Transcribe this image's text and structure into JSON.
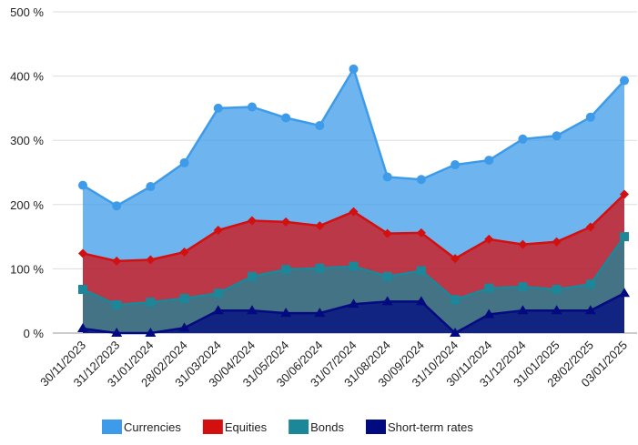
{
  "chart_data": {
    "type": "area",
    "categories": [
      "30/11/2023",
      "31/12/2023",
      "31/01/2024",
      "28/02/2024",
      "31/03/2024",
      "30/04/2024",
      "31/05/2024",
      "30/06/2024",
      "31/07/2024",
      "31/08/2024",
      "30/09/2024",
      "31/10/2024",
      "30/11/2024",
      "31/12/2024",
      "31/01/2025",
      "28/02/2025",
      "03/01/2025"
    ],
    "series": [
      {
        "name": "Currencies",
        "color": "#3d9be9",
        "marker": "circle",
        "values": [
          230,
          198,
          228,
          265,
          350,
          352,
          335,
          323,
          411,
          243,
          239,
          262,
          269,
          302,
          307,
          336,
          393
        ]
      },
      {
        "name": "Equities",
        "color": "#d40f0f",
        "marker": "diamond",
        "values": [
          124,
          112,
          114,
          126,
          160,
          175,
          173,
          167,
          189,
          155,
          156,
          116,
          146,
          138,
          142,
          165,
          216
        ]
      },
      {
        "name": "Bonds",
        "color": "#1b8798",
        "marker": "square",
        "values": [
          68,
          44,
          48,
          54,
          62,
          88,
          99,
          101,
          104,
          88,
          97,
          52,
          70,
          72,
          68,
          76,
          150
        ]
      },
      {
        "name": "Short-term rates",
        "color": "#020a80",
        "marker": "triangle",
        "values": [
          7,
          0,
          0,
          8,
          35,
          35,
          31,
          31,
          45,
          49,
          49,
          0,
          29,
          35,
          35,
          35,
          62
        ]
      }
    ],
    "ylim": [
      0,
      500
    ],
    "yticks": [
      {
        "value": 0,
        "label": "0 %"
      },
      {
        "value": 100,
        "label": "100 %"
      },
      {
        "value": 200,
        "label": "200 %"
      },
      {
        "value": 300,
        "label": "300 %"
      },
      {
        "value": 400,
        "label": "400 %"
      },
      {
        "value": 500,
        "label": "500 %"
      }
    ],
    "grid": true,
    "legend": "bottom"
  }
}
